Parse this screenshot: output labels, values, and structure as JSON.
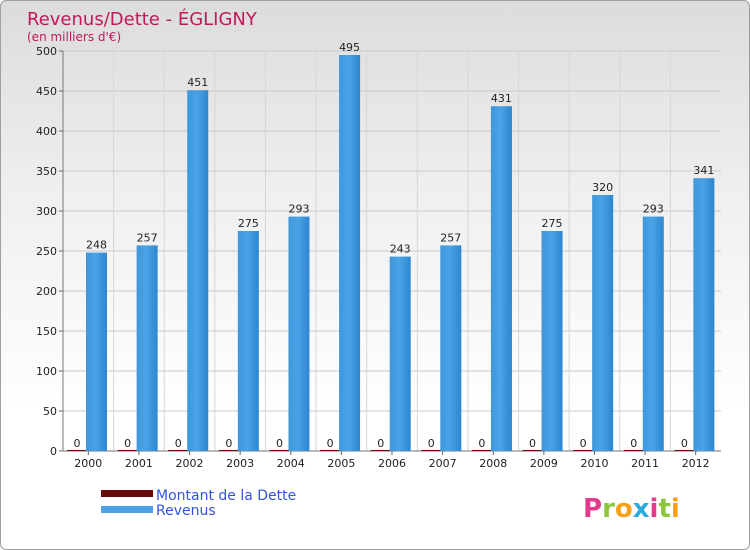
{
  "chart_data": {
    "type": "bar",
    "title": "Revenus/Dette - ÉGLIGNY",
    "subtitle": "(en milliers d'€)",
    "categories": [
      "2000",
      "2001",
      "2002",
      "2003",
      "2004",
      "2005",
      "2006",
      "2007",
      "2008",
      "2009",
      "2010",
      "2011",
      "2012"
    ],
    "series": [
      {
        "name": "Montant de la Dette",
        "color": "#6b0a0a",
        "values": [
          0,
          0,
          0,
          0,
          0,
          0,
          0,
          0,
          0,
          0,
          0,
          0,
          0
        ]
      },
      {
        "name": "Revenus",
        "color": "#4aa3e6",
        "values": [
          248,
          257,
          451,
          275,
          293,
          495,
          243,
          257,
          431,
          275,
          320,
          293,
          341
        ]
      }
    ],
    "ylim": [
      0,
      500
    ],
    "yticks": [
      0,
      50,
      100,
      150,
      200,
      250,
      300,
      350,
      400,
      450,
      500
    ],
    "grid": true,
    "legend_position": "bottom-left"
  },
  "logo": {
    "letters": [
      "P",
      "r",
      "o",
      "x",
      "i",
      "t",
      "i"
    ],
    "colors": [
      "#e23a8c",
      "#8cc63f",
      "#f7a11a",
      "#2ba9e0",
      "#e23a8c",
      "#8cc63f",
      "#f7a11a"
    ]
  }
}
